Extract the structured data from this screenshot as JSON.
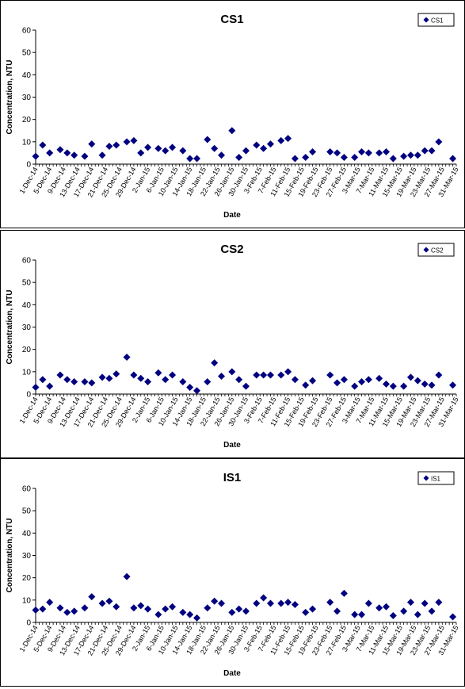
{
  "chart_data": [
    {
      "type": "scatter",
      "title": "CS1",
      "xlabel": "Date",
      "ylabel": "Concentration, NTU",
      "ylim": [
        0,
        60
      ],
      "yticks": [
        0,
        10,
        20,
        30,
        40,
        50,
        60
      ],
      "xlim": [
        "1-Dec-14",
        "31-Mar-15"
      ],
      "xticks": [
        "1-Dec-14",
        "5-Dec-14",
        "9-Dec-14",
        "13-Dec-14",
        "17-Dec-14",
        "21-Dec-14",
        "25-Dec-14",
        "29-Dec-14",
        "2-Jan-15",
        "6-Jan-15",
        "10-Jan-15",
        "14-Jan-15",
        "18-Jan-15",
        "22-Jan-15",
        "26-Jan-15",
        "30-Jan-15",
        "3-Feb-15",
        "7-Feb-15",
        "11-Feb-15",
        "15-Feb-15",
        "19-Feb-15",
        "23-Feb-15",
        "27-Feb-15",
        "3-Mar-15",
        "7-Mar-15",
        "11-Mar-15",
        "15-Mar-15",
        "19-Mar-15",
        "23-Mar-15",
        "27-Mar-15",
        "31-Mar-15"
      ],
      "legend_position": "top-right",
      "grid": false,
      "marker_color": "#000080",
      "series": [
        {
          "name": "CS1",
          "points": [
            {
              "x": "1-Dec-14",
              "y": 3.5
            },
            {
              "x": "3-Dec-14",
              "y": 8.5
            },
            {
              "x": "5-Dec-14",
              "y": 5
            },
            {
              "x": "8-Dec-14",
              "y": 6.5
            },
            {
              "x": "10-Dec-14",
              "y": 5
            },
            {
              "x": "12-Dec-14",
              "y": 4
            },
            {
              "x": "15-Dec-14",
              "y": 3.5
            },
            {
              "x": "17-Dec-14",
              "y": 9
            },
            {
              "x": "20-Dec-14",
              "y": 4
            },
            {
              "x": "22-Dec-14",
              "y": 8
            },
            {
              "x": "24-Dec-14",
              "y": 8.5
            },
            {
              "x": "27-Dec-14",
              "y": 10
            },
            {
              "x": "29-Dec-14",
              "y": 10.5
            },
            {
              "x": "31-Dec-14",
              "y": 5
            },
            {
              "x": "2-Jan-15",
              "y": 7.5
            },
            {
              "x": "5-Jan-15",
              "y": 7
            },
            {
              "x": "7-Jan-15",
              "y": 6
            },
            {
              "x": "9-Jan-15",
              "y": 7.5
            },
            {
              "x": "12-Jan-15",
              "y": 6
            },
            {
              "x": "14-Jan-15",
              "y": 2.5
            },
            {
              "x": "16-Jan-15",
              "y": 2.5
            },
            {
              "x": "19-Jan-15",
              "y": 11
            },
            {
              "x": "21-Jan-15",
              "y": 7
            },
            {
              "x": "23-Jan-15",
              "y": 4
            },
            {
              "x": "26-Jan-15",
              "y": 15
            },
            {
              "x": "28-Jan-15",
              "y": 3
            },
            {
              "x": "30-Jan-15",
              "y": 6
            },
            {
              "x": "2-Feb-15",
              "y": 8.5
            },
            {
              "x": "4-Feb-15",
              "y": 7
            },
            {
              "x": "6-Feb-15",
              "y": 9
            },
            {
              "x": "9-Feb-15",
              "y": 10.5
            },
            {
              "x": "11-Feb-15",
              "y": 11.5
            },
            {
              "x": "13-Feb-15",
              "y": 2.5
            },
            {
              "x": "16-Feb-15",
              "y": 3
            },
            {
              "x": "18-Feb-15",
              "y": 5.5
            },
            {
              "x": "23-Feb-15",
              "y": 5.5
            },
            {
              "x": "25-Feb-15",
              "y": 5
            },
            {
              "x": "27-Feb-15",
              "y": 3
            },
            {
              "x": "2-Mar-15",
              "y": 3
            },
            {
              "x": "4-Mar-15",
              "y": 5.5
            },
            {
              "x": "6-Mar-15",
              "y": 5
            },
            {
              "x": "9-Mar-15",
              "y": 5
            },
            {
              "x": "11-Mar-15",
              "y": 5.5
            },
            {
              "x": "13-Mar-15",
              "y": 2.5
            },
            {
              "x": "16-Mar-15",
              "y": 3.5
            },
            {
              "x": "18-Mar-15",
              "y": 4
            },
            {
              "x": "20-Mar-15",
              "y": 4
            },
            {
              "x": "22-Mar-15",
              "y": 6
            },
            {
              "x": "24-Mar-15",
              "y": 6
            },
            {
              "x": "26-Mar-15",
              "y": 10
            },
            {
              "x": "30-Mar-15",
              "y": 2.5
            }
          ]
        }
      ]
    },
    {
      "type": "scatter",
      "title": "CS2",
      "xlabel": "Date",
      "ylabel": "Concentration, NTU",
      "ylim": [
        0,
        60
      ],
      "yticks": [
        0,
        10,
        20,
        30,
        40,
        50,
        60
      ],
      "xlim": [
        "1-Dec-14",
        "31-Mar-15"
      ],
      "xticks": [
        "1-Dec-14",
        "5-Dec-14",
        "9-Dec-14",
        "13-Dec-14",
        "17-Dec-14",
        "21-Dec-14",
        "25-Dec-14",
        "29-Dec-14",
        "2-Jan-15",
        "6-Jan-15",
        "10-Jan-15",
        "14-Jan-15",
        "18-Jan-15",
        "22-Jan-15",
        "26-Jan-15",
        "30-Jan-15",
        "3-Feb-15",
        "7-Feb-15",
        "11-Feb-15",
        "15-Feb-15",
        "19-Feb-15",
        "23-Feb-15",
        "27-Feb-15",
        "3-Mar-15",
        "7-Mar-15",
        "11-Mar-15",
        "15-Mar-15",
        "19-Mar-15",
        "23-Mar-15",
        "27-Mar-15",
        "31-Mar-15"
      ],
      "legend_position": "top-right",
      "grid": false,
      "marker_color": "#000080",
      "series": [
        {
          "name": "CS2",
          "points": [
            {
              "x": "1-Dec-14",
              "y": 3
            },
            {
              "x": "3-Dec-14",
              "y": 6.5
            },
            {
              "x": "5-Dec-14",
              "y": 3.5
            },
            {
              "x": "8-Dec-14",
              "y": 8.5
            },
            {
              "x": "10-Dec-14",
              "y": 6.5
            },
            {
              "x": "12-Dec-14",
              "y": 5.5
            },
            {
              "x": "15-Dec-14",
              "y": 5.5
            },
            {
              "x": "17-Dec-14",
              "y": 5
            },
            {
              "x": "20-Dec-14",
              "y": 7.5
            },
            {
              "x": "22-Dec-14",
              "y": 7
            },
            {
              "x": "24-Dec-14",
              "y": 9
            },
            {
              "x": "27-Dec-14",
              "y": 16.5
            },
            {
              "x": "29-Dec-14",
              "y": 8.5
            },
            {
              "x": "31-Dec-14",
              "y": 7
            },
            {
              "x": "2-Jan-15",
              "y": 5.5
            },
            {
              "x": "5-Jan-15",
              "y": 9.5
            },
            {
              "x": "7-Jan-15",
              "y": 6.5
            },
            {
              "x": "9-Jan-15",
              "y": 8.5
            },
            {
              "x": "12-Jan-15",
              "y": 5.5
            },
            {
              "x": "14-Jan-15",
              "y": 3
            },
            {
              "x": "16-Jan-15",
              "y": 1.5
            },
            {
              "x": "19-Jan-15",
              "y": 5.5
            },
            {
              "x": "21-Jan-15",
              "y": 14
            },
            {
              "x": "23-Jan-15",
              "y": 8
            },
            {
              "x": "26-Jan-15",
              "y": 10
            },
            {
              "x": "28-Jan-15",
              "y": 6.5
            },
            {
              "x": "30-Jan-15",
              "y": 3.5
            },
            {
              "x": "2-Feb-15",
              "y": 8.5
            },
            {
              "x": "4-Feb-15",
              "y": 8.5
            },
            {
              "x": "6-Feb-15",
              "y": 8.5
            },
            {
              "x": "9-Feb-15",
              "y": 8.5
            },
            {
              "x": "11-Feb-15",
              "y": 10
            },
            {
              "x": "13-Feb-15",
              "y": 6.5
            },
            {
              "x": "16-Feb-15",
              "y": 4
            },
            {
              "x": "18-Feb-15",
              "y": 6
            },
            {
              "x": "23-Feb-15",
              "y": 8.5
            },
            {
              "x": "25-Feb-15",
              "y": 5
            },
            {
              "x": "27-Feb-15",
              "y": 6.5
            },
            {
              "x": "2-Mar-15",
              "y": 3.5
            },
            {
              "x": "4-Mar-15",
              "y": 5.5
            },
            {
              "x": "6-Mar-15",
              "y": 6.5
            },
            {
              "x": "9-Mar-15",
              "y": 7
            },
            {
              "x": "11-Mar-15",
              "y": 4.5
            },
            {
              "x": "13-Mar-15",
              "y": 3.5
            },
            {
              "x": "16-Mar-15",
              "y": 3.5
            },
            {
              "x": "18-Mar-15",
              "y": 7.5
            },
            {
              "x": "20-Mar-15",
              "y": 6
            },
            {
              "x": "22-Mar-15",
              "y": 4.5
            },
            {
              "x": "24-Mar-15",
              "y": 4
            },
            {
              "x": "26-Mar-15",
              "y": 8.5
            },
            {
              "x": "30-Mar-15",
              "y": 4
            }
          ]
        }
      ]
    },
    {
      "type": "scatter",
      "title": "IS1",
      "xlabel": "Date",
      "ylabel": "Concentration, NTU",
      "ylim": [
        0,
        60
      ],
      "yticks": [
        0,
        10,
        20,
        30,
        40,
        50,
        60
      ],
      "xlim": [
        "1-Dec-14",
        "31-Mar-15"
      ],
      "xticks": [
        "1-Dec-14",
        "5-Dec-14",
        "9-Dec-14",
        "13-Dec-14",
        "17-Dec-14",
        "21-Dec-14",
        "25-Dec-14",
        "29-Dec-14",
        "2-Jan-15",
        "6-Jan-15",
        "10-Jan-15",
        "14-Jan-15",
        "18-Jan-15",
        "22-Jan-15",
        "26-Jan-15",
        "30-Jan-15",
        "3-Feb-15",
        "7-Feb-15",
        "11-Feb-15",
        "15-Feb-15",
        "19-Feb-15",
        "23-Feb-15",
        "27-Feb-15",
        "3-Mar-15",
        "7-Mar-15",
        "11-Mar-15",
        "15-Mar-15",
        "19-Mar-15",
        "23-Mar-15",
        "27-Mar-15",
        "31-Mar-15"
      ],
      "legend_position": "top-right",
      "grid": false,
      "marker_color": "#000080",
      "series": [
        {
          "name": "IS1",
          "points": [
            {
              "x": "1-Dec-14",
              "y": 5.5
            },
            {
              "x": "3-Dec-14",
              "y": 6
            },
            {
              "x": "5-Dec-14",
              "y": 9
            },
            {
              "x": "8-Dec-14",
              "y": 6.5
            },
            {
              "x": "10-Dec-14",
              "y": 4.5
            },
            {
              "x": "12-Dec-14",
              "y": 5
            },
            {
              "x": "15-Dec-14",
              "y": 6.5
            },
            {
              "x": "17-Dec-14",
              "y": 11.5
            },
            {
              "x": "20-Dec-14",
              "y": 8.5
            },
            {
              "x": "22-Dec-14",
              "y": 9.5
            },
            {
              "x": "24-Dec-14",
              "y": 7
            },
            {
              "x": "27-Dec-14",
              "y": 20.5
            },
            {
              "x": "29-Dec-14",
              "y": 6.5
            },
            {
              "x": "31-Dec-14",
              "y": 7.5
            },
            {
              "x": "2-Jan-15",
              "y": 6
            },
            {
              "x": "5-Jan-15",
              "y": 3.5
            },
            {
              "x": "7-Jan-15",
              "y": 6
            },
            {
              "x": "9-Jan-15",
              "y": 7
            },
            {
              "x": "12-Jan-15",
              "y": 4.5
            },
            {
              "x": "14-Jan-15",
              "y": 3.5
            },
            {
              "x": "16-Jan-15",
              "y": 2
            },
            {
              "x": "19-Jan-15",
              "y": 6.5
            },
            {
              "x": "21-Jan-15",
              "y": 9.5
            },
            {
              "x": "23-Jan-15",
              "y": 8.5
            },
            {
              "x": "26-Jan-15",
              "y": 4.5
            },
            {
              "x": "28-Jan-15",
              "y": 6
            },
            {
              "x": "30-Jan-15",
              "y": 5
            },
            {
              "x": "2-Feb-15",
              "y": 8.5
            },
            {
              "x": "4-Feb-15",
              "y": 11
            },
            {
              "x": "6-Feb-15",
              "y": 8.5
            },
            {
              "x": "9-Feb-15",
              "y": 8.5
            },
            {
              "x": "11-Feb-15",
              "y": 9
            },
            {
              "x": "13-Feb-15",
              "y": 8
            },
            {
              "x": "16-Feb-15",
              "y": 4.5
            },
            {
              "x": "18-Feb-15",
              "y": 6
            },
            {
              "x": "23-Feb-15",
              "y": 9
            },
            {
              "x": "25-Feb-15",
              "y": 5
            },
            {
              "x": "27-Feb-15",
              "y": 13
            },
            {
              "x": "2-Mar-15",
              "y": 3.5
            },
            {
              "x": "4-Mar-15",
              "y": 3.5
            },
            {
              "x": "6-Mar-15",
              "y": 8.5
            },
            {
              "x": "9-Mar-15",
              "y": 6.5
            },
            {
              "x": "11-Mar-15",
              "y": 7
            },
            {
              "x": "13-Mar-15",
              "y": 3
            },
            {
              "x": "16-Mar-15",
              "y": 5
            },
            {
              "x": "18-Mar-15",
              "y": 9
            },
            {
              "x": "20-Mar-15",
              "y": 3.5
            },
            {
              "x": "22-Mar-15",
              "y": 8.5
            },
            {
              "x": "24-Mar-15",
              "y": 5
            },
            {
              "x": "26-Mar-15",
              "y": 9
            },
            {
              "x": "30-Mar-15",
              "y": 2.5
            }
          ]
        }
      ]
    }
  ]
}
